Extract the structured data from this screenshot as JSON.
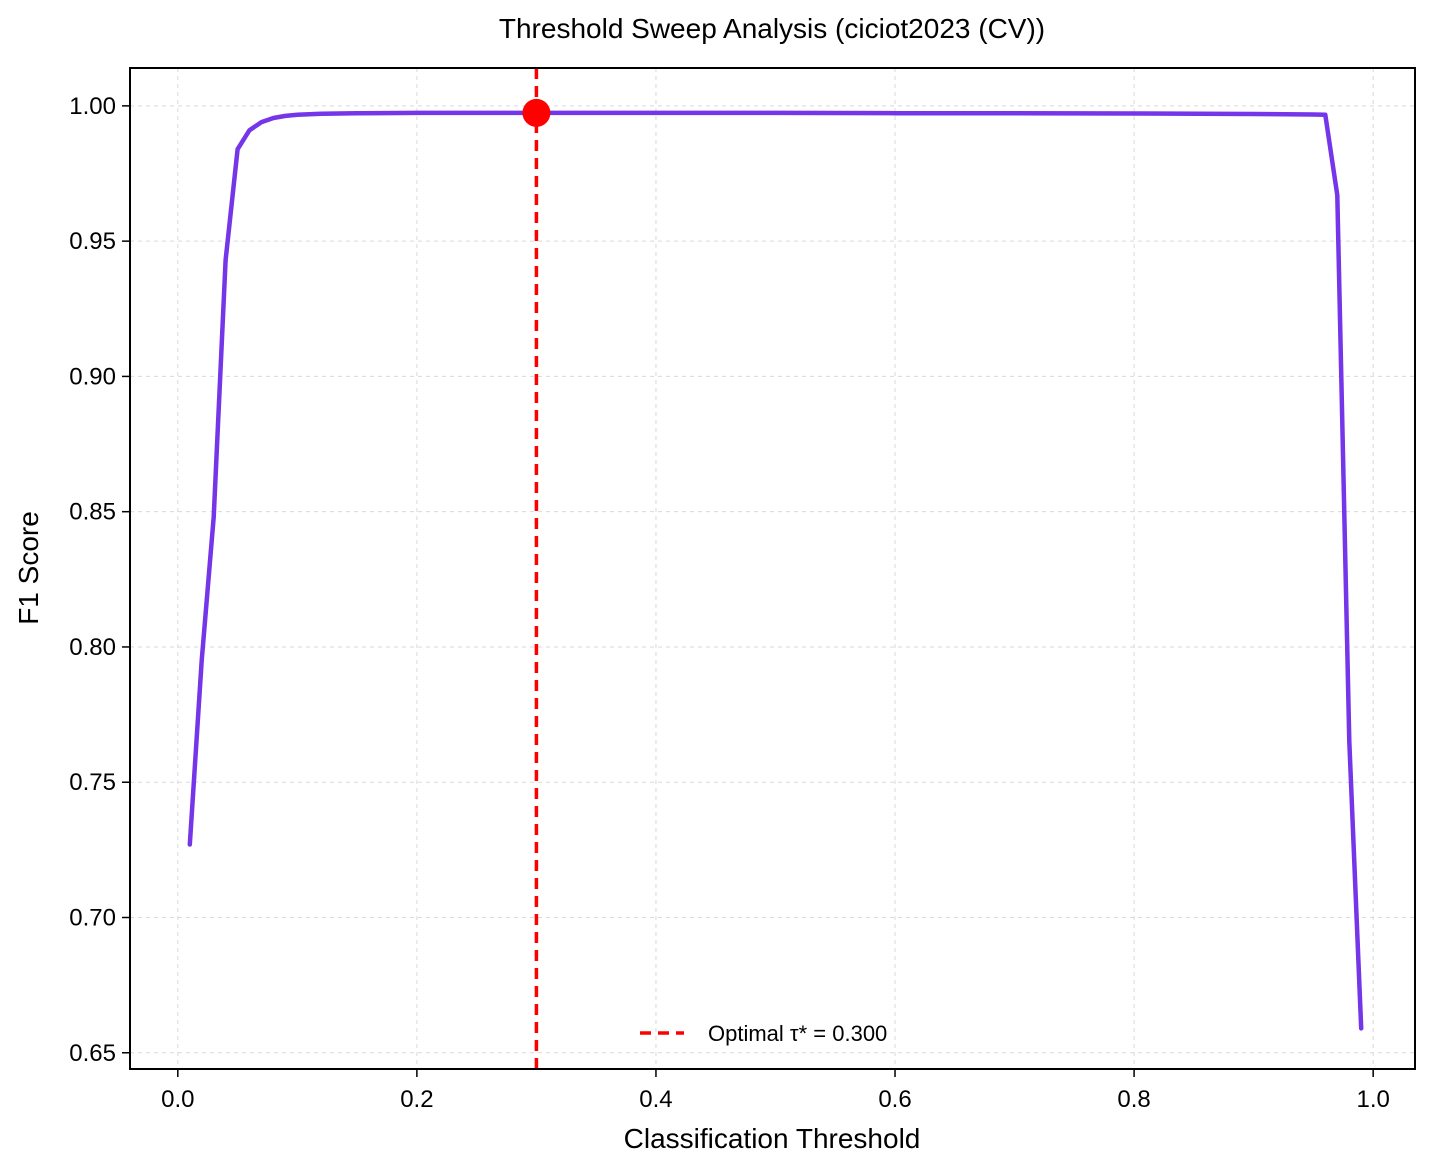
{
  "chart_data": {
    "type": "line",
    "title": "Threshold Sweep Analysis (ciciot2023 (CV))",
    "xlabel": "Classification Threshold",
    "ylabel": "F1 Score",
    "xlim": [
      -0.04,
      1.035
    ],
    "ylim": [
      0.644,
      1.014
    ],
    "xticks": [
      0.0,
      0.2,
      0.4,
      0.6,
      0.8,
      1.0
    ],
    "xtick_labels": [
      "0.0",
      "0.2",
      "0.4",
      "0.6",
      "0.8",
      "1.0"
    ],
    "yticks": [
      0.65,
      0.7,
      0.75,
      0.8,
      0.85,
      0.9,
      0.95,
      1.0
    ],
    "ytick_labels": [
      "0.65",
      "0.70",
      "0.75",
      "0.80",
      "0.85",
      "0.90",
      "0.95",
      "1.00"
    ],
    "grid": true,
    "legend_position": "bottom-center",
    "series": [
      {
        "color": "#7535e8",
        "x": [
          0.01,
          0.02,
          0.03,
          0.04,
          0.05,
          0.06,
          0.07,
          0.08,
          0.09,
          0.1,
          0.12,
          0.15,
          0.2,
          0.25,
          0.3,
          0.4,
          0.5,
          0.6,
          0.7,
          0.8,
          0.9,
          0.95,
          0.96,
          0.97,
          0.98,
          0.99
        ],
        "y": [
          0.727,
          0.795,
          0.848,
          0.943,
          0.984,
          0.991,
          0.994,
          0.9955,
          0.9963,
          0.9967,
          0.9971,
          0.9973,
          0.9974,
          0.9974,
          0.9974,
          0.9974,
          0.9974,
          0.9973,
          0.9973,
          0.9972,
          0.997,
          0.9968,
          0.9967,
          0.967,
          0.765,
          0.659
        ]
      }
    ],
    "optimal": {
      "x": 0.3,
      "y": 0.9974,
      "line_color": "#ff0000",
      "marker_color": "#ff0000",
      "legend_label": "Optimal τ* = 0.300"
    }
  }
}
